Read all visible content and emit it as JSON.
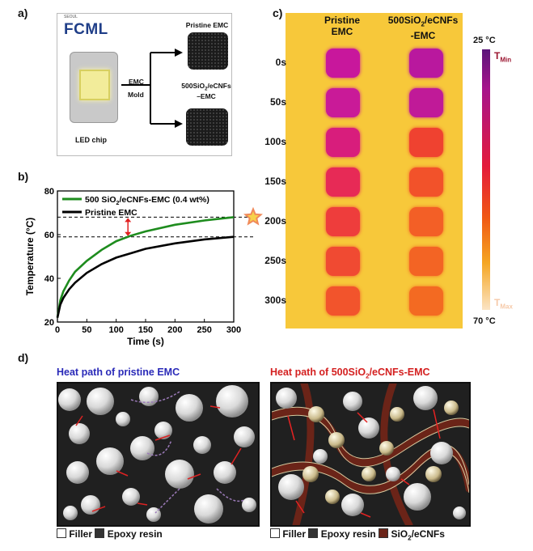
{
  "panels": {
    "a": "a)",
    "b": "b)",
    "c": "c)",
    "d": "d)"
  },
  "panel_a": {
    "logo_small": "SEOUL",
    "logo": "FCML",
    "led_label": "LED chip",
    "emc_label": "EMC",
    "mold_label": "Mold",
    "pristine_label": "Pristine EMC",
    "composite_label_1": "500SiO",
    "composite_label_sub": "2",
    "composite_label_2": "/eCNFs",
    "composite_label_3": "–EMC"
  },
  "panel_c": {
    "col1_line1": "Pristine",
    "col1_line2": "EMC",
    "col2_line1": "500SiO",
    "col2_sub": "2",
    "col2_line1b": "/eCNFs",
    "col2_line2": "-EMC",
    "times": [
      "0s",
      "50s",
      "100s",
      "150s",
      "200s",
      "250s",
      "300s"
    ],
    "pristine_colors": [
      "#c8179c",
      "#c91a98",
      "#d81d7c",
      "#e72a56",
      "#ee3d3c",
      "#f04a32",
      "#f2542c"
    ],
    "composite_colors": [
      "#b9189e",
      "#c01a98",
      "#ef4230",
      "#f2522a",
      "#f35f26",
      "#f36424",
      "#f36a22"
    ],
    "scale_top": "25 °C",
    "scale_bottom": "70 °C",
    "tmin": "T",
    "tmin_sub": "Min",
    "tmax": "T",
    "tmax_sub": "Max"
  },
  "panel_d": {
    "left_title": "Heat path of pristine EMC",
    "right_title_1": "Heat path of 500SiO",
    "right_title_sub": "2",
    "right_title_2": "/eCNFs-EMC",
    "legend_filler": "Filler",
    "legend_epoxy": "Epoxy resin",
    "legend_cnf_1": "SiO",
    "legend_cnf_sub": "2",
    "legend_cnf_2": "/eCNFs"
  },
  "chart_data": {
    "type": "line",
    "xlabel": "Time (s)",
    "ylabel": "Temperature (°C)",
    "xlim": [
      0,
      300
    ],
    "ylim": [
      20,
      80
    ],
    "xticks": [
      0,
      50,
      100,
      150,
      200,
      250,
      300
    ],
    "yticks": [
      20,
      40,
      60,
      80
    ],
    "legend": "top-left",
    "reference_lines": [
      68,
      59
    ],
    "series": [
      {
        "name_main": "500 SiO",
        "name_sub": "2",
        "name_rest": "/eCNFs-EMC (0.4 wt%)",
        "color": "#1e8c1e",
        "x": [
          0,
          5,
          10,
          20,
          30,
          50,
          75,
          100,
          125,
          150,
          200,
          250,
          300
        ],
        "y": [
          22,
          30,
          34,
          39,
          43,
          48,
          53,
          57,
          59.5,
          61.5,
          64.5,
          66.5,
          68
        ]
      },
      {
        "name_main": "Pristine EMC",
        "color": "#000000",
        "x": [
          0,
          5,
          10,
          20,
          30,
          50,
          75,
          100,
          125,
          150,
          200,
          250,
          300
        ],
        "y": [
          22,
          28,
          31,
          35,
          38,
          42.5,
          46.5,
          49.5,
          51.5,
          53.5,
          56,
          57.8,
          59
        ]
      }
    ]
  }
}
